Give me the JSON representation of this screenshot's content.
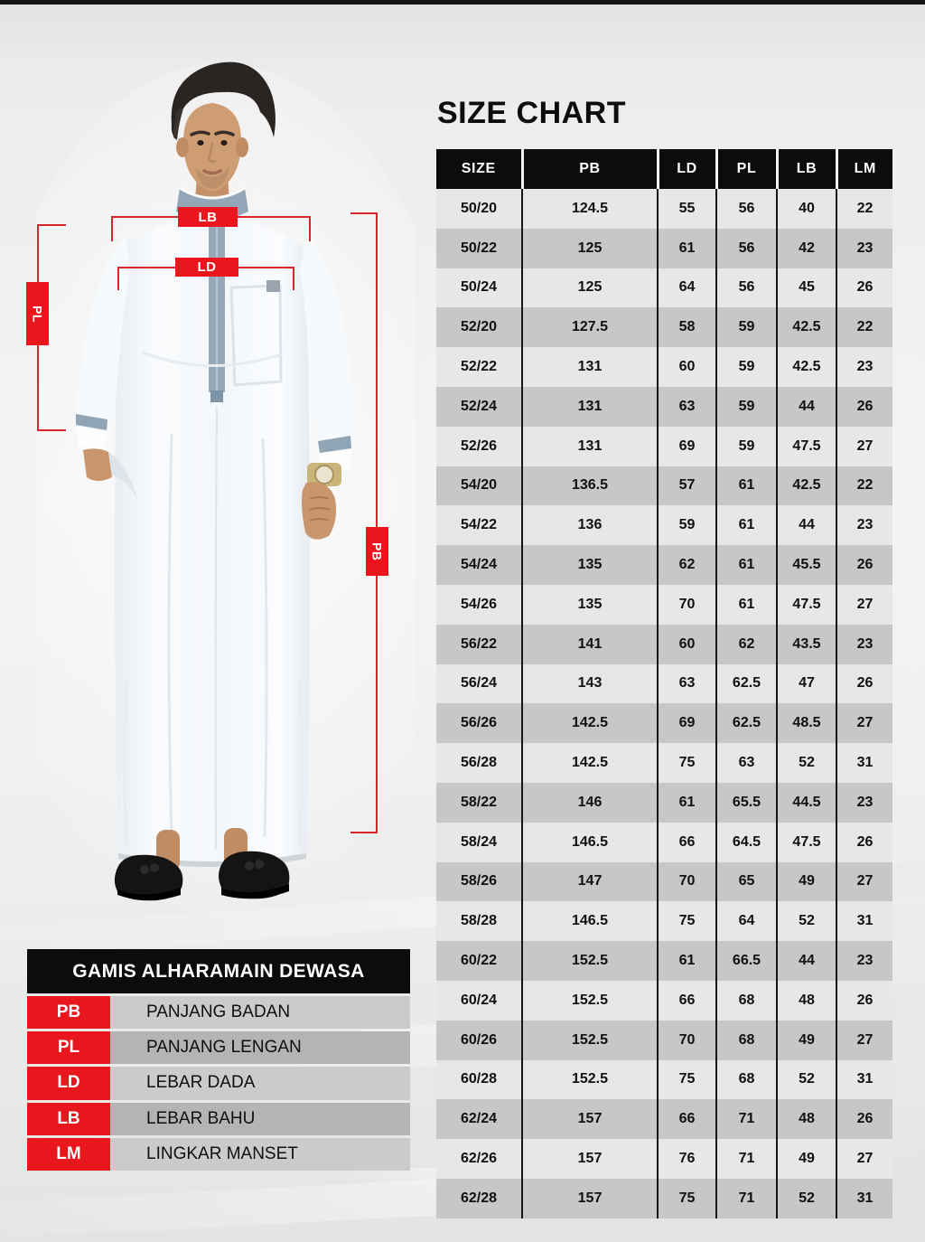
{
  "page": {
    "title": "SIZE CHART"
  },
  "size_chart": {
    "title": "SIZE CHART",
    "columns": [
      "SIZE",
      "PB",
      "LD",
      "PL",
      "LB",
      "LM"
    ],
    "rows": [
      [
        "50/20",
        "124.5",
        "55",
        "56",
        "40",
        "22"
      ],
      [
        "50/22",
        "125",
        "61",
        "56",
        "42",
        "23"
      ],
      [
        "50/24",
        "125",
        "64",
        "56",
        "45",
        "26"
      ],
      [
        "52/20",
        "127.5",
        "58",
        "59",
        "42.5",
        "22"
      ],
      [
        "52/22",
        "131",
        "60",
        "59",
        "42.5",
        "23"
      ],
      [
        "52/24",
        "131",
        "63",
        "59",
        "44",
        "26"
      ],
      [
        "52/26",
        "131",
        "69",
        "59",
        "47.5",
        "27"
      ],
      [
        "54/20",
        "136.5",
        "57",
        "61",
        "42.5",
        "22"
      ],
      [
        "54/22",
        "136",
        "59",
        "61",
        "44",
        "23"
      ],
      [
        "54/24",
        "135",
        "62",
        "61",
        "45.5",
        "26"
      ],
      [
        "54/26",
        "135",
        "70",
        "61",
        "47.5",
        "27"
      ],
      [
        "56/22",
        "141",
        "60",
        "62",
        "43.5",
        "23"
      ],
      [
        "56/24",
        "143",
        "63",
        "62.5",
        "47",
        "26"
      ],
      [
        "56/26",
        "142.5",
        "69",
        "62.5",
        "48.5",
        "27"
      ],
      [
        "56/28",
        "142.5",
        "75",
        "63",
        "52",
        "31"
      ],
      [
        "58/22",
        "146",
        "61",
        "65.5",
        "44.5",
        "23"
      ],
      [
        "58/24",
        "146.5",
        "66",
        "64.5",
        "47.5",
        "26"
      ],
      [
        "58/26",
        "147",
        "70",
        "65",
        "49",
        "27"
      ],
      [
        "58/28",
        "146.5",
        "75",
        "64",
        "52",
        "31"
      ],
      [
        "60/22",
        "152.5",
        "61",
        "66.5",
        "44",
        "23"
      ],
      [
        "60/24",
        "152.5",
        "66",
        "68",
        "48",
        "26"
      ],
      [
        "60/26",
        "152.5",
        "70",
        "68",
        "49",
        "27"
      ],
      [
        "60/28",
        "152.5",
        "75",
        "68",
        "52",
        "31"
      ],
      [
        "62/24",
        "157",
        "66",
        "71",
        "48",
        "26"
      ],
      [
        "62/26",
        "157",
        "76",
        "71",
        "49",
        "27"
      ],
      [
        "62/28",
        "157",
        "75",
        "71",
        "52",
        "31"
      ]
    ]
  },
  "legend": {
    "title": "GAMIS ALHARAMAIN DEWASA",
    "items": [
      {
        "abbr": "PB",
        "label": "PANJANG BADAN"
      },
      {
        "abbr": "PL",
        "label": "PANJANG LENGAN"
      },
      {
        "abbr": "LD",
        "label": "LEBAR DADA"
      },
      {
        "abbr": "LB",
        "label": "LEBAR BAHU"
      },
      {
        "abbr": "LM",
        "label": "LINGKAR MANSET"
      }
    ]
  },
  "figure": {
    "annotations": {
      "lb": "LB",
      "ld": "LD",
      "pl": "PL",
      "pb": "PB"
    }
  },
  "colors": {
    "accent_red": "#e8161d",
    "header_black": "#0c0c0c",
    "row_light": "#e7e7e6",
    "row_dark": "#c7c7c6",
    "legend_row_light": "#cbcbcb",
    "legend_row_dark": "#b4b4b4",
    "garment_accent": "#92a7b8"
  }
}
